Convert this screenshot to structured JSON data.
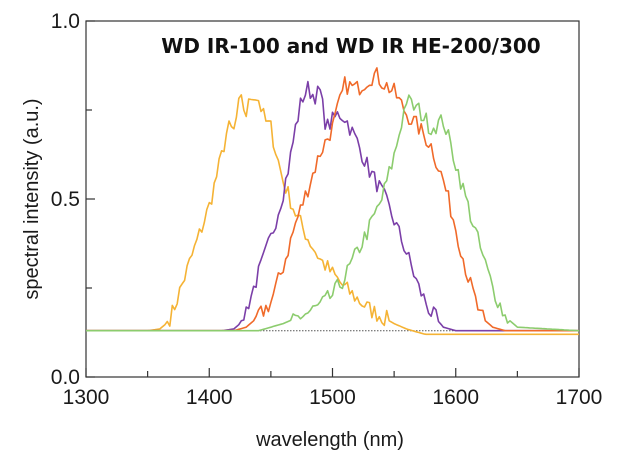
{
  "chart_data": {
    "type": "line",
    "title": "WD IR-100 and WD IR HE-200/300",
    "xlabel": "wavelength (nm)",
    "ylabel": "spectral intensity (a.u.)",
    "xlim": [
      1300,
      1700
    ],
    "ylim": [
      0.0,
      1.0
    ],
    "xticks": [
      1300,
      1400,
      1500,
      1600,
      1700
    ],
    "yticks": [
      0.0,
      0.5,
      1.0
    ],
    "ytick_labels": [
      "0.0",
      "0.5",
      "1.0"
    ],
    "baseline": {
      "y": 0.13,
      "style": "dotted",
      "color": "#555555"
    },
    "grid": false,
    "series": [
      {
        "color": "#f5b335",
        "x": [
          1300,
          1350,
          1360,
          1365,
          1370,
          1380,
          1390,
          1400,
          1410,
          1415,
          1420,
          1425,
          1430,
          1435,
          1440,
          1445,
          1450,
          1455,
          1460,
          1470,
          1480,
          1490,
          1500,
          1510,
          1520,
          1530,
          1540,
          1550,
          1560,
          1575,
          1700
        ],
        "y": [
          0.13,
          0.13,
          0.135,
          0.15,
          0.18,
          0.28,
          0.38,
          0.48,
          0.62,
          0.7,
          0.69,
          0.78,
          0.74,
          0.8,
          0.78,
          0.72,
          0.7,
          0.62,
          0.55,
          0.46,
          0.39,
          0.33,
          0.29,
          0.25,
          0.22,
          0.19,
          0.17,
          0.15,
          0.135,
          0.12,
          0.12
        ]
      },
      {
        "color": "#7b3fa8",
        "x": [
          1300,
          1410,
          1420,
          1425,
          1430,
          1440,
          1450,
          1460,
          1465,
          1470,
          1475,
          1480,
          1485,
          1490,
          1495,
          1500,
          1505,
          1510,
          1520,
          1530,
          1540,
          1550,
          1560,
          1570,
          1580,
          1590,
          1600,
          1700
        ],
        "y": [
          0.13,
          0.13,
          0.135,
          0.15,
          0.19,
          0.29,
          0.39,
          0.52,
          0.6,
          0.7,
          0.78,
          0.81,
          0.79,
          0.8,
          0.7,
          0.72,
          0.74,
          0.73,
          0.66,
          0.58,
          0.52,
          0.44,
          0.35,
          0.25,
          0.18,
          0.14,
          0.13,
          0.13
        ]
      },
      {
        "color": "#f06a2a",
        "x": [
          1300,
          1420,
          1430,
          1440,
          1450,
          1460,
          1470,
          1480,
          1490,
          1500,
          1510,
          1520,
          1530,
          1535,
          1540,
          1550,
          1560,
          1570,
          1580,
          1590,
          1600,
          1610,
          1620,
          1630,
          1640,
          1700
        ],
        "y": [
          0.13,
          0.13,
          0.14,
          0.17,
          0.21,
          0.31,
          0.43,
          0.53,
          0.63,
          0.7,
          0.82,
          0.81,
          0.84,
          0.85,
          0.83,
          0.8,
          0.74,
          0.7,
          0.65,
          0.55,
          0.42,
          0.28,
          0.17,
          0.14,
          0.13,
          0.13
        ]
      },
      {
        "color": "#8ccc6e",
        "x": [
          1300,
          1440,
          1460,
          1480,
          1490,
          1500,
          1510,
          1520,
          1530,
          1540,
          1550,
          1555,
          1560,
          1565,
          1570,
          1580,
          1590,
          1600,
          1610,
          1620,
          1630,
          1640,
          1650,
          1700
        ],
        "y": [
          0.13,
          0.13,
          0.15,
          0.18,
          0.2,
          0.23,
          0.28,
          0.35,
          0.42,
          0.5,
          0.62,
          0.7,
          0.78,
          0.76,
          0.75,
          0.7,
          0.72,
          0.6,
          0.48,
          0.36,
          0.25,
          0.17,
          0.14,
          0.13
        ]
      }
    ]
  }
}
